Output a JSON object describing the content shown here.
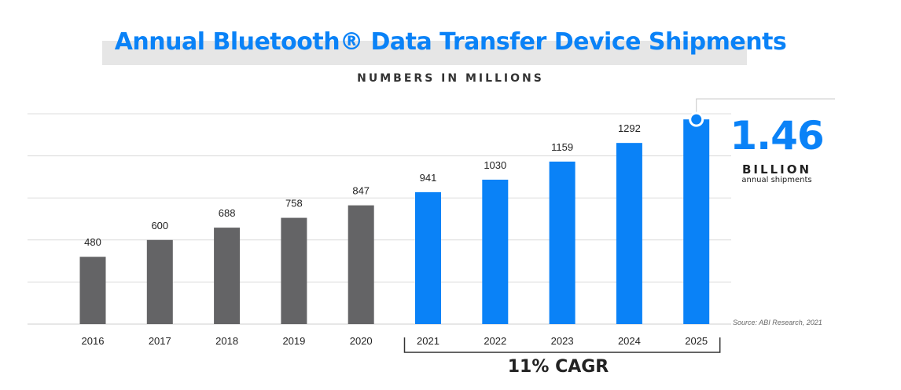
{
  "chart_data": {
    "type": "bar",
    "title": "Annual Bluetooth® Data Transfer Device Shipments",
    "subtitle": "NUMBERS IN MILLIONS",
    "categories": [
      "2016",
      "2017",
      "2018",
      "2019",
      "2020",
      "2021",
      "2022",
      "2023",
      "2024",
      "2025"
    ],
    "values": [
      480,
      600,
      688,
      758,
      847,
      941,
      1030,
      1159,
      1292,
      1460
    ],
    "value_labels": [
      "480",
      "600",
      "688",
      "758",
      "847",
      "941",
      "1030",
      "1159",
      "1292",
      ""
    ],
    "bar_colors": [
      "#646466",
      "#646466",
      "#646466",
      "#646466",
      "#646466",
      "#0a82f7",
      "#0a82f7",
      "#0a82f7",
      "#0a82f7",
      "#0a82f7"
    ],
    "ylim": [
      0,
      1500
    ],
    "grid": true,
    "callout": {
      "value": "1.46",
      "unit": "BILLION",
      "description": "annual shipments"
    },
    "bracket_label": "11% CAGR",
    "source": "Source: ABI Research, 2021"
  },
  "colors": {
    "accent": "#0a82f7",
    "historical": "#646466"
  }
}
